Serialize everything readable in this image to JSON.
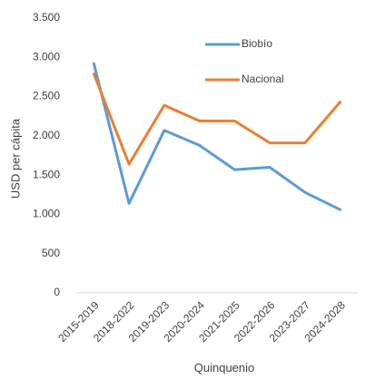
{
  "chart_data": {
    "type": "line",
    "categories": [
      "2015-2019",
      "2018-2022",
      "2019-2023",
      "2020-2024",
      "2021-2025",
      "2022-2026",
      "2023-2027",
      "2024-2028"
    ],
    "series": [
      {
        "name": "Biobío",
        "color": "#5B9BD5",
        "values": [
          2920,
          1140,
          2070,
          1880,
          1570,
          1600,
          1280,
          1060
        ]
      },
      {
        "name": "Nacional",
        "color": "#ED7D31",
        "values": [
          2790,
          1640,
          2390,
          2190,
          2190,
          1910,
          1910,
          2430
        ]
      }
    ],
    "xlabel": "Quinquenio",
    "ylabel": "USD per cápita",
    "ylim": [
      0,
      3500
    ],
    "yticks": [
      0,
      500,
      1000,
      1500,
      2000,
      2500,
      3000,
      3500
    ],
    "ytick_labels": [
      "0",
      "500",
      "1.000",
      "1.500",
      "2.000",
      "2.500",
      "3.000",
      "3.500"
    ],
    "grid": false,
    "legend_position": "top-right"
  }
}
